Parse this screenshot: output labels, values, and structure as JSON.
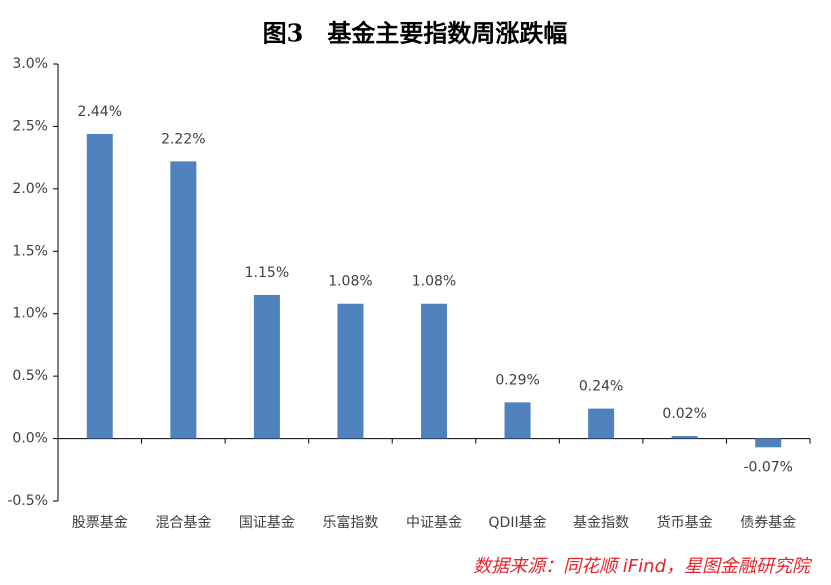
{
  "chart_data": {
    "type": "bar",
    "title": "图3　基金主要指数周涨跌幅",
    "categories": [
      "股票基金",
      "混合基金",
      "国证基金",
      "乐富指数",
      "中证基金",
      "QDII基金",
      "基金指数",
      "货币基金",
      "债券基金"
    ],
    "values": [
      2.44,
      2.22,
      1.15,
      1.08,
      1.08,
      0.29,
      0.24,
      0.02,
      -0.07
    ],
    "value_labels": [
      "2.44%",
      "2.22%",
      "1.15%",
      "1.08%",
      "1.08%",
      "0.29%",
      "0.24%",
      "0.02%",
      "-0.07%"
    ],
    "color": "#4f81bd",
    "ylim": [
      -0.5,
      3.0
    ],
    "yticks": [
      {
        "value": -0.5,
        "label": "-0.5%"
      },
      {
        "value": 0,
        "label": "0.0%"
      },
      {
        "value": 0.5,
        "label": "0.5%"
      },
      {
        "value": 1.0,
        "label": "1.0%"
      },
      {
        "value": 1.5,
        "label": "1.5%"
      },
      {
        "value": 2.0,
        "label": "2.0%"
      },
      {
        "value": 2.5,
        "label": "2.5%"
      },
      {
        "value": 3.0,
        "label": "3.0%"
      }
    ],
    "grid": false,
    "source": "数据来源：同花顺 iFind，星图金融研究院"
  }
}
